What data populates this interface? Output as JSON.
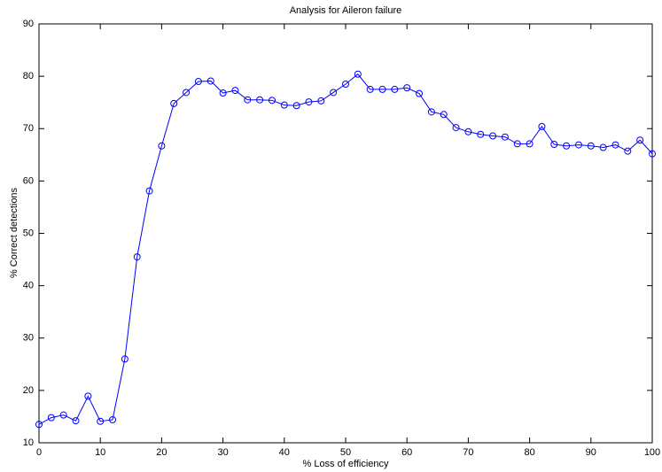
{
  "chart_data": {
    "type": "line",
    "title": "Analysis for Aileron failure",
    "x_label": "% Loss of efficiency",
    "y_label": "% Correct detections",
    "x": [
      0,
      2,
      4,
      6,
      8,
      10,
      12,
      14,
      16,
      18,
      20,
      22,
      24,
      26,
      28,
      30,
      32,
      34,
      36,
      38,
      40,
      42,
      44,
      46,
      48,
      50,
      52,
      54,
      56,
      58,
      60,
      62,
      64,
      66,
      68,
      70,
      72,
      74,
      76,
      78,
      80,
      82,
      84,
      86,
      88,
      90,
      92,
      94,
      96,
      98,
      100
    ],
    "values": [
      13.5,
      14.8,
      15.3,
      14.2,
      18.9,
      14.1,
      14.4,
      26,
      45.5,
      58.1,
      66.7,
      74.8,
      76.9,
      79,
      79.1,
      76.8,
      77.3,
      75.5,
      75.5,
      75.4,
      74.5,
      74.4,
      75.1,
      75.3,
      76.9,
      78.5,
      80.4,
      77.5,
      77.5,
      77.5,
      77.8,
      76.7,
      73.2,
      72.7,
      70.2,
      69.4,
      68.9,
      68.6,
      68.4,
      67.1,
      67.1,
      70.4,
      67,
      66.7,
      66.9,
      66.7,
      66.4,
      66.9,
      65.7,
      67.8,
      65.2
    ],
    "color": "#0000ff",
    "marker": "circle",
    "xlim": [
      0,
      100
    ],
    "xticks": [
      0,
      10,
      20,
      30,
      40,
      50,
      60,
      70,
      80,
      90,
      100
    ],
    "ylim": [
      10,
      90
    ],
    "yticks": [
      10,
      20,
      30,
      40,
      50,
      60,
      70,
      80,
      90
    ],
    "grid": false
  }
}
